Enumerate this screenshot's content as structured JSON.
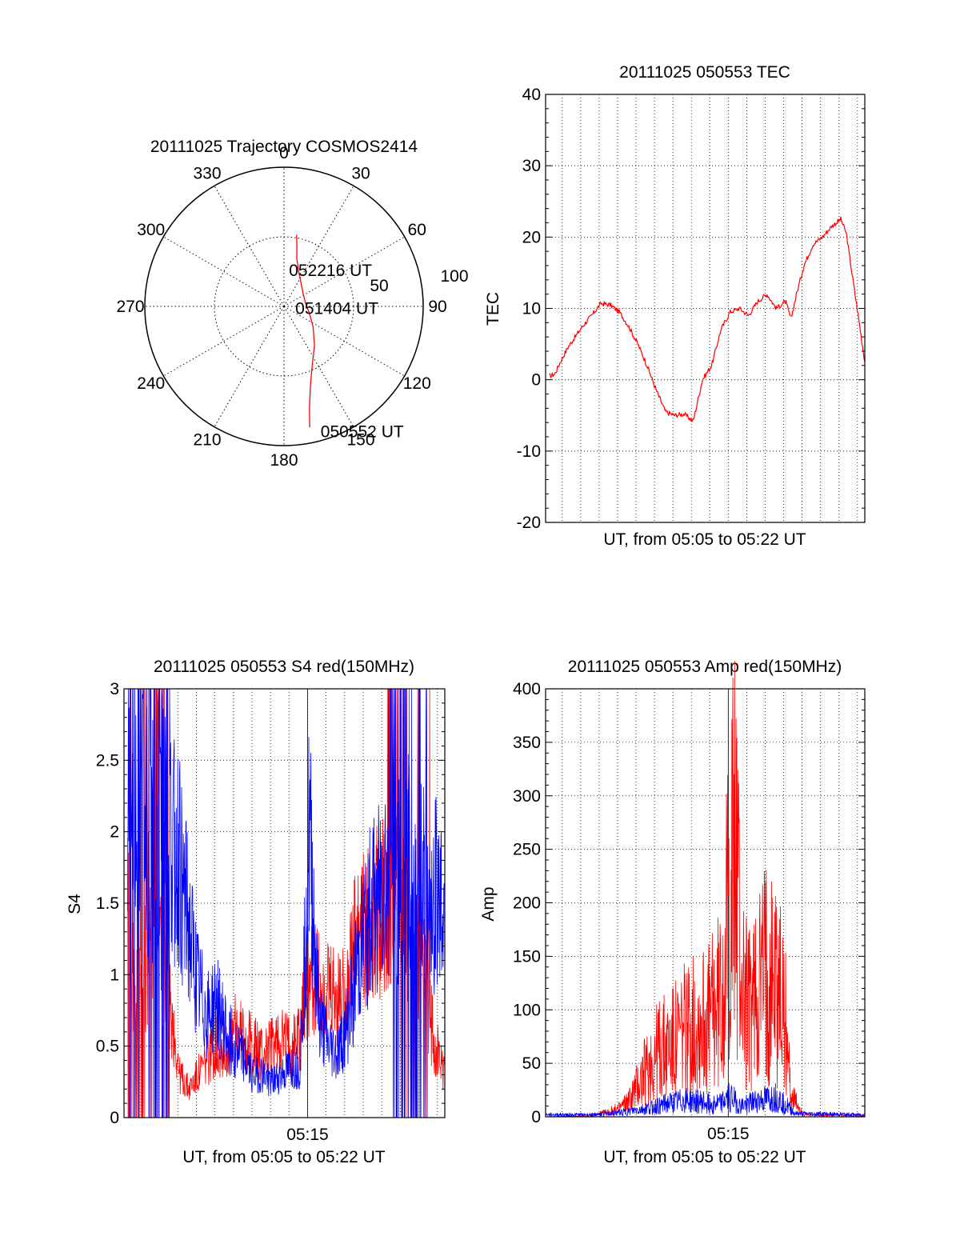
{
  "chart_data": [
    {
      "type": "polar",
      "title": "20111025 Trajectory COSMOS2414",
      "angle_labels": [
        "0",
        "30",
        "60",
        "90",
        "120",
        "150",
        "180",
        "210",
        "240",
        "270",
        "300",
        "330"
      ],
      "radius_labels": [
        "50",
        "100"
      ],
      "series": [
        {
          "color": "#ff0000",
          "points_az_el": [
            [
              10,
              47
            ],
            [
              12,
              40
            ],
            [
              15,
              32
            ],
            [
              22,
              25
            ],
            [
              35,
              19
            ],
            [
              55,
              15
            ],
            [
              80,
              14
            ],
            [
              105,
              17
            ],
            [
              125,
              23
            ],
            [
              142,
              32
            ],
            [
              155,
              43
            ],
            [
              162,
              55
            ],
            [
              166,
              68
            ],
            [
              168,
              80
            ]
          ]
        }
      ],
      "annotations": [
        {
          "text": "052216 UT",
          "az": 14,
          "el": 24
        },
        {
          "text": "051404 UT",
          "az": 98,
          "el": 10
        },
        {
          "text": "050552 UT",
          "az": 162,
          "el": 85
        }
      ]
    },
    {
      "type": "line",
      "title": "20111025 050553 TEC",
      "xlabel": "UT, from 05:05 to 05:22 UT",
      "ylabel": "TEC",
      "xlim": [
        0,
        17.3
      ],
      "ylim": [
        -20,
        40
      ],
      "yticks": [
        -20,
        -10,
        0,
        10,
        20,
        30,
        40
      ],
      "grid": true,
      "series": [
        {
          "color": "#ff0000",
          "x": [
            0.2,
            0.5,
            0.8,
            1.2,
            1.6,
            2.0,
            2.5,
            3.0,
            3.5,
            4.0,
            4.5,
            5.0,
            5.5,
            6.0,
            6.5,
            7.0,
            7.5,
            8.0,
            8.5,
            9.0,
            9.5,
            10.0,
            10.5,
            11.0,
            11.5,
            12.0,
            12.5,
            13.0,
            13.3,
            13.6,
            14.0,
            14.5,
            15.0,
            15.5,
            16.0,
            16.3,
            16.6,
            17.0,
            17.3
          ],
          "y": [
            0.5,
            0.8,
            2.5,
            4.5,
            6.0,
            7.5,
            9.0,
            10.7,
            10.5,
            9.5,
            7.5,
            5.0,
            2.0,
            -1.5,
            -4.5,
            -5.0,
            -4.8,
            -5.8,
            0.0,
            2.0,
            7.0,
            9.5,
            10.0,
            9.0,
            11.0,
            12.0,
            10.0,
            11.0,
            8.5,
            12.0,
            16.0,
            19.0,
            20.0,
            21.5,
            22.5,
            20.5,
            15.0,
            8.0,
            2.5
          ]
        }
      ]
    },
    {
      "type": "line",
      "title": "20111025 050553 S4 red(150MHz)",
      "xlabel": "UT, from 05:05 to 05:22 UT",
      "ylabel": "S4",
      "xlim": [
        0,
        17.3
      ],
      "ylim": [
        0,
        3
      ],
      "yticks": [
        0,
        0.5,
        1,
        1.5,
        2,
        2.5,
        3
      ],
      "xtick_label": "05:15",
      "xtick_value": 9.9,
      "grid": true,
      "series": [
        {
          "color": "#ff0000",
          "x": [
            0.2,
            0.5,
            1.0,
            1.5,
            2.0,
            2.5,
            3.0,
            3.5,
            4.0,
            4.5,
            5.0,
            5.5,
            6.0,
            6.5,
            7.0,
            7.5,
            8.0,
            8.5,
            9.0,
            9.5,
            10.0,
            10.5,
            11.0,
            11.5,
            12.0,
            12.5,
            13.0,
            13.5,
            14.0,
            14.5,
            15.0,
            15.5,
            16.0,
            16.5,
            17.0,
            17.3
          ],
          "y": [
            1.5,
            1.0,
            0.9,
            1.4,
            1.2,
            0.8,
            0.3,
            0.2,
            0.3,
            0.4,
            0.5,
            0.45,
            0.6,
            0.55,
            0.5,
            0.45,
            0.5,
            0.55,
            0.5,
            0.6,
            1.0,
            0.9,
            0.85,
            0.8,
            0.9,
            1.2,
            1.3,
            1.4,
            1.5,
            1.6,
            1.4,
            1.2,
            1.1,
            0.7,
            0.4,
            0.3
          ]
        },
        {
          "color": "#0000ff",
          "x": [
            0.2,
            0.5,
            1.0,
            1.5,
            2.0,
            2.5,
            3.0,
            3.5,
            4.0,
            4.5,
            5.0,
            5.5,
            6.0,
            6.5,
            7.0,
            7.5,
            8.0,
            8.5,
            9.0,
            9.5,
            10.0,
            10.5,
            11.0,
            11.5,
            12.0,
            12.5,
            13.0,
            13.5,
            14.0,
            14.5,
            15.0,
            15.5,
            16.0,
            16.5,
            17.0,
            17.3
          ],
          "y": [
            2.2,
            2.6,
            2.2,
            1.9,
            2.4,
            2.0,
            1.8,
            1.3,
            0.9,
            0.7,
            0.8,
            0.6,
            0.5,
            0.4,
            0.3,
            0.3,
            0.25,
            0.3,
            0.35,
            0.35,
            2.0,
            0.7,
            0.5,
            0.45,
            0.6,
            1.0,
            1.3,
            1.5,
            1.7,
            1.8,
            1.6,
            1.9,
            1.7,
            1.5,
            1.6,
            1.4
          ]
        }
      ]
    },
    {
      "type": "line",
      "title": "20111025 050553 Amp red(150MHz)",
      "xlabel": "UT, from 05:05 to 05:22 UT",
      "ylabel": "Amp",
      "xlim": [
        0,
        17.3
      ],
      "ylim": [
        0,
        400
      ],
      "yticks": [
        0,
        50,
        100,
        150,
        200,
        250,
        300,
        350,
        400
      ],
      "xtick_label": "05:15",
      "xtick_value": 9.9,
      "grid": true,
      "series": [
        {
          "color": "#ff0000",
          "x": [
            0.0,
            2.5,
            3.0,
            3.5,
            4.0,
            4.5,
            5.0,
            5.5,
            6.0,
            6.5,
            7.0,
            7.5,
            8.0,
            8.5,
            9.0,
            9.5,
            10.0,
            10.3,
            10.6,
            11.0,
            11.5,
            12.0,
            12.5,
            13.0,
            13.3,
            14.0,
            17.3
          ],
          "y": [
            0,
            1,
            3,
            5,
            8,
            15,
            30,
            45,
            60,
            65,
            70,
            80,
            85,
            90,
            95,
            110,
            210,
            260,
            130,
            100,
            120,
            140,
            130,
            90,
            20,
            2,
            1
          ]
        },
        {
          "color": "#0000ff",
          "x": [
            0.0,
            2.5,
            3.5,
            4.5,
            5.5,
            6.5,
            7.5,
            8.5,
            9.5,
            10.0,
            10.5,
            11.5,
            12.5,
            13.0,
            13.5,
            17.3
          ],
          "y": [
            2,
            2,
            3,
            5,
            8,
            12,
            15,
            14,
            12,
            20,
            10,
            15,
            18,
            12,
            3,
            2
          ]
        }
      ]
    }
  ]
}
